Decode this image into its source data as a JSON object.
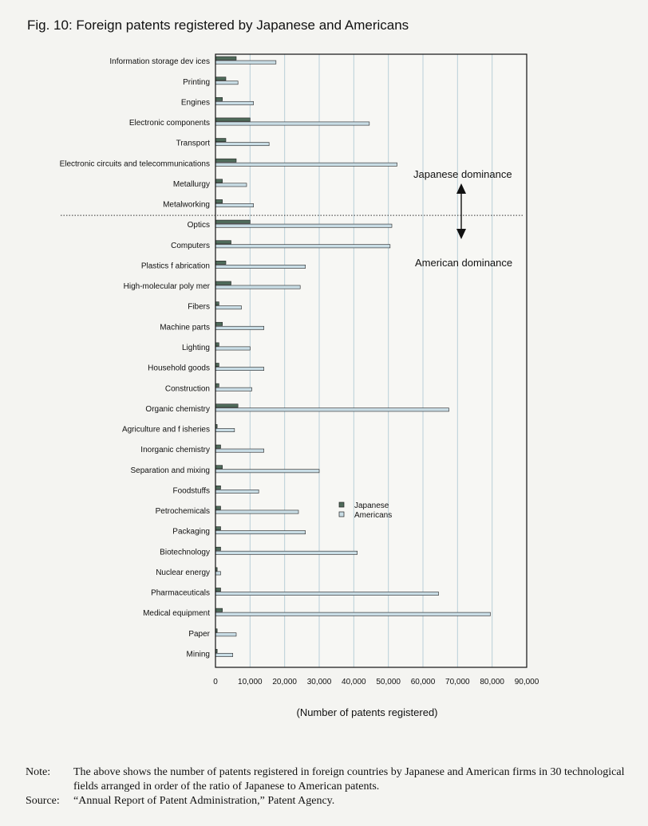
{
  "figure": {
    "title": "Fig. 10: Foreign patents registered by Japanese and Americans"
  },
  "annotations": {
    "japanese_dominance": "Japanese dominance",
    "american_dominance": "American dominance"
  },
  "colors": {
    "japanese": "#4f6b5a",
    "americans": "#c9dde5",
    "third_bar": "#f2da62",
    "divider": "#333333",
    "grid": "#b9cfd8"
  },
  "chart_data": {
    "type": "bar",
    "orientation": "horizontal",
    "xlabel": "(Number of patents registered)",
    "xlim": [
      0,
      90000
    ],
    "x_ticks": [
      "0",
      "10,000",
      "20,000",
      "30,000",
      "40,000",
      "50,000",
      "60,000",
      "70,000",
      "80,000",
      "90,000"
    ],
    "grid": "vertical",
    "legend_placement": "right-middle",
    "legend": [
      "Japanese",
      "Americans"
    ],
    "divider_after_category": "Metalworking",
    "categories": [
      "Information storage dev ices",
      "Printing",
      "Engines",
      "Electronic components",
      "Transport",
      "Electronic circuits and telecommunications",
      "Metallurgy",
      "Metalworking",
      "Optics",
      "Computers",
      "Plastics f abrication",
      "High-molecular poly mer",
      "Fibers",
      "Machine parts",
      "Lighting",
      "Household goods",
      "Construction",
      "Organic chemistry",
      "Agriculture and f isheries",
      "Inorganic chemistry",
      "Separation and mixing",
      "Foodstuffs",
      "Petrochemicals",
      "Packaging",
      "Biotechnology",
      "Nuclear energy",
      "Pharmaceuticals",
      "Medical equipment",
      "Paper",
      "Mining"
    ],
    "series": [
      {
        "name": "Japanese",
        "values": [
          6000,
          3000,
          2000,
          10000,
          3000,
          6000,
          2000,
          2000,
          10000,
          4500,
          3000,
          4500,
          1000,
          2000,
          1000,
          1000,
          1000,
          6500,
          500,
          1500,
          2000,
          1500,
          1500,
          1500,
          1500,
          500,
          1500,
          2000,
          500,
          500
        ]
      },
      {
        "name": "Americans",
        "values": [
          17500,
          6500,
          11000,
          44500,
          15500,
          52500,
          9000,
          11000,
          51000,
          50500,
          26000,
          24500,
          7500,
          14000,
          10000,
          14000,
          10500,
          67500,
          5500,
          14000,
          30000,
          12500,
          24000,
          26000,
          41000,
          1500,
          64500,
          79500,
          6000,
          5000
        ]
      }
    ]
  },
  "note": {
    "label": "Note:",
    "text": "The above shows the number of patents registered in foreign countries by Japanese and American firms in 30 technological fields arranged in order of the ratio of Japanese to American patents.",
    "source_label": "Source:",
    "source_text": "“Annual Report of Patent Administration,” Patent Agency."
  }
}
